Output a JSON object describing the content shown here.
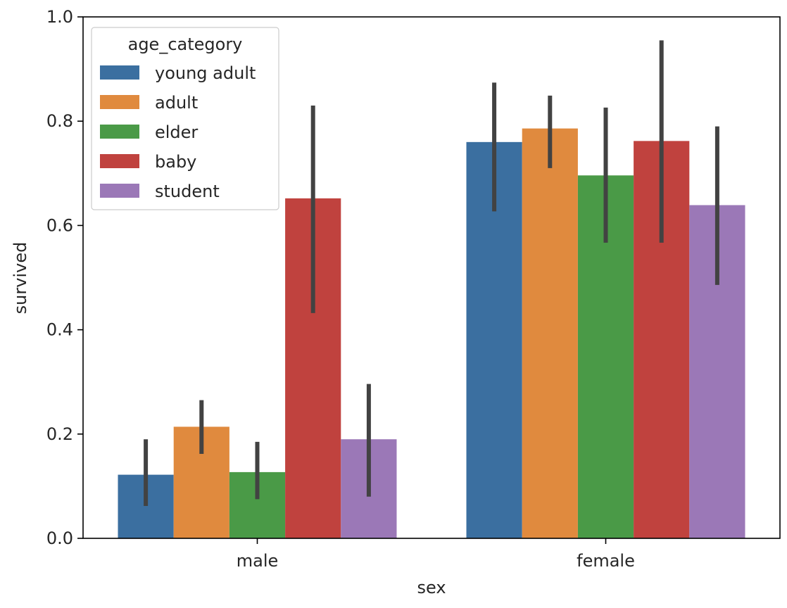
{
  "chart_data": {
    "type": "bar",
    "xlabel": "sex",
    "ylabel": "survived",
    "ylim": [
      0,
      1.0
    ],
    "yticks": [
      "0.0",
      "0.2",
      "0.4",
      "0.6",
      "0.8",
      "1.0"
    ],
    "categories": [
      "male",
      "female"
    ],
    "grid": false,
    "legend": {
      "title": "age_category",
      "placement": "top-left"
    },
    "series": [
      {
        "name": "young adult",
        "color": "#3b6fa0",
        "values": [
          0.122,
          0.76
        ],
        "ci": [
          [
            0.062,
            0.19
          ],
          [
            0.627,
            0.874
          ]
        ]
      },
      {
        "name": "adult",
        "color": "#e08a3e",
        "values": [
          0.214,
          0.786
        ],
        "ci": [
          [
            0.162,
            0.265
          ],
          [
            0.71,
            0.849
          ]
        ]
      },
      {
        "name": "elder",
        "color": "#4a9a47",
        "values": [
          0.127,
          0.696
        ],
        "ci": [
          [
            0.075,
            0.185
          ],
          [
            0.567,
            0.826
          ]
        ]
      },
      {
        "name": "baby",
        "color": "#c0423e",
        "values": [
          0.652,
          0.762
        ],
        "ci": [
          [
            0.432,
            0.83
          ],
          [
            0.567,
            0.955
          ]
        ]
      },
      {
        "name": "student",
        "color": "#9b78b7",
        "values": [
          0.19,
          0.639
        ],
        "ci": [
          [
            0.08,
            0.296
          ],
          [
            0.486,
            0.79
          ]
        ]
      }
    ]
  }
}
